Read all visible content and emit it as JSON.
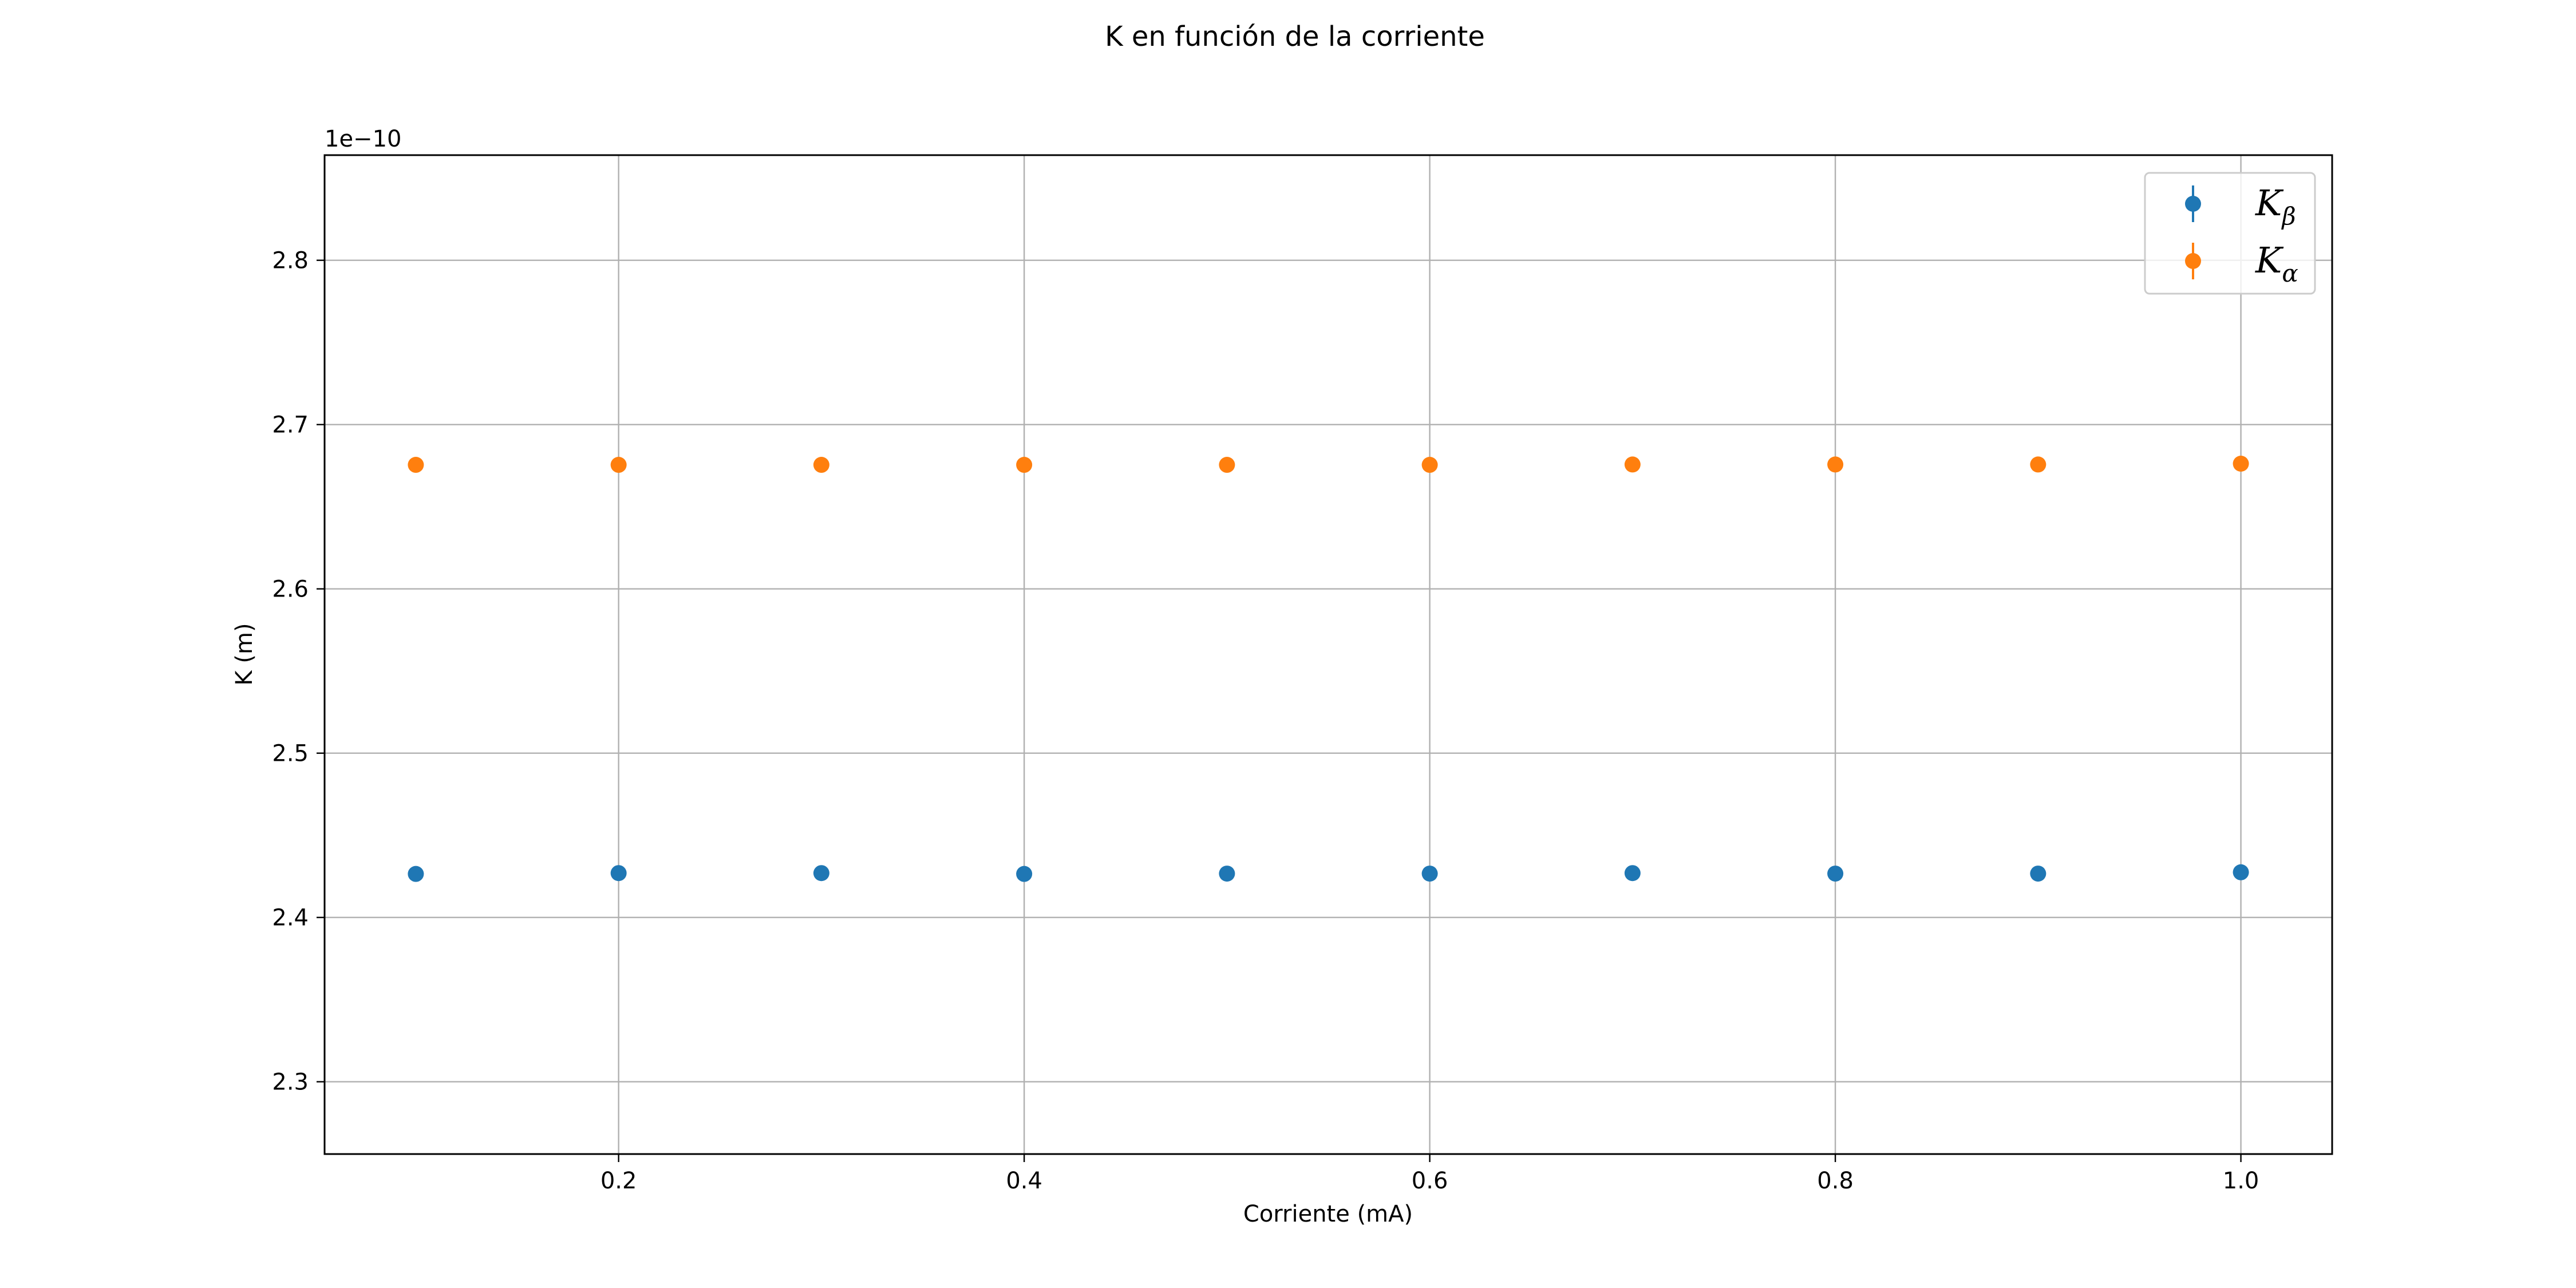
{
  "chart_data": {
    "type": "scatter",
    "title": "K en función de la corriente",
    "xlabel": "Corriente (mA)",
    "ylabel": "K (m)",
    "y_offset_label": "1e−10",
    "xlim": [
      0.055,
      1.045
    ],
    "ylim": [
      2.256,
      2.864
    ],
    "x_ticks": [
      0.2,
      0.4,
      0.6,
      0.8,
      1.0
    ],
    "x_tick_labels": [
      "0.2",
      "0.4",
      "0.6",
      "0.8",
      "1.0"
    ],
    "y_ticks": [
      2.3,
      2.4,
      2.5,
      2.6,
      2.7,
      2.8
    ],
    "y_tick_labels": [
      "2.3",
      "2.4",
      "2.5",
      "2.6",
      "2.7",
      "2.8"
    ],
    "grid": true,
    "legend_position": "top-right",
    "x": [
      0.1,
      0.2,
      0.3,
      0.4,
      0.5,
      0.6,
      0.7,
      0.8,
      0.9,
      1.0
    ],
    "series": [
      {
        "name": "K",
        "name_subscript": "β",
        "color": "#1f77b4",
        "values": [
          2.4265,
          2.427,
          2.427,
          2.4265,
          2.4267,
          2.4267,
          2.427,
          2.4267,
          2.4267,
          2.4275
        ]
      },
      {
        "name": "K",
        "name_subscript": "α",
        "color": "#ff7f0e",
        "values": [
          2.6755,
          2.6755,
          2.6755,
          2.6755,
          2.6755,
          2.6755,
          2.6757,
          2.6757,
          2.6757,
          2.6762
        ]
      }
    ]
  }
}
